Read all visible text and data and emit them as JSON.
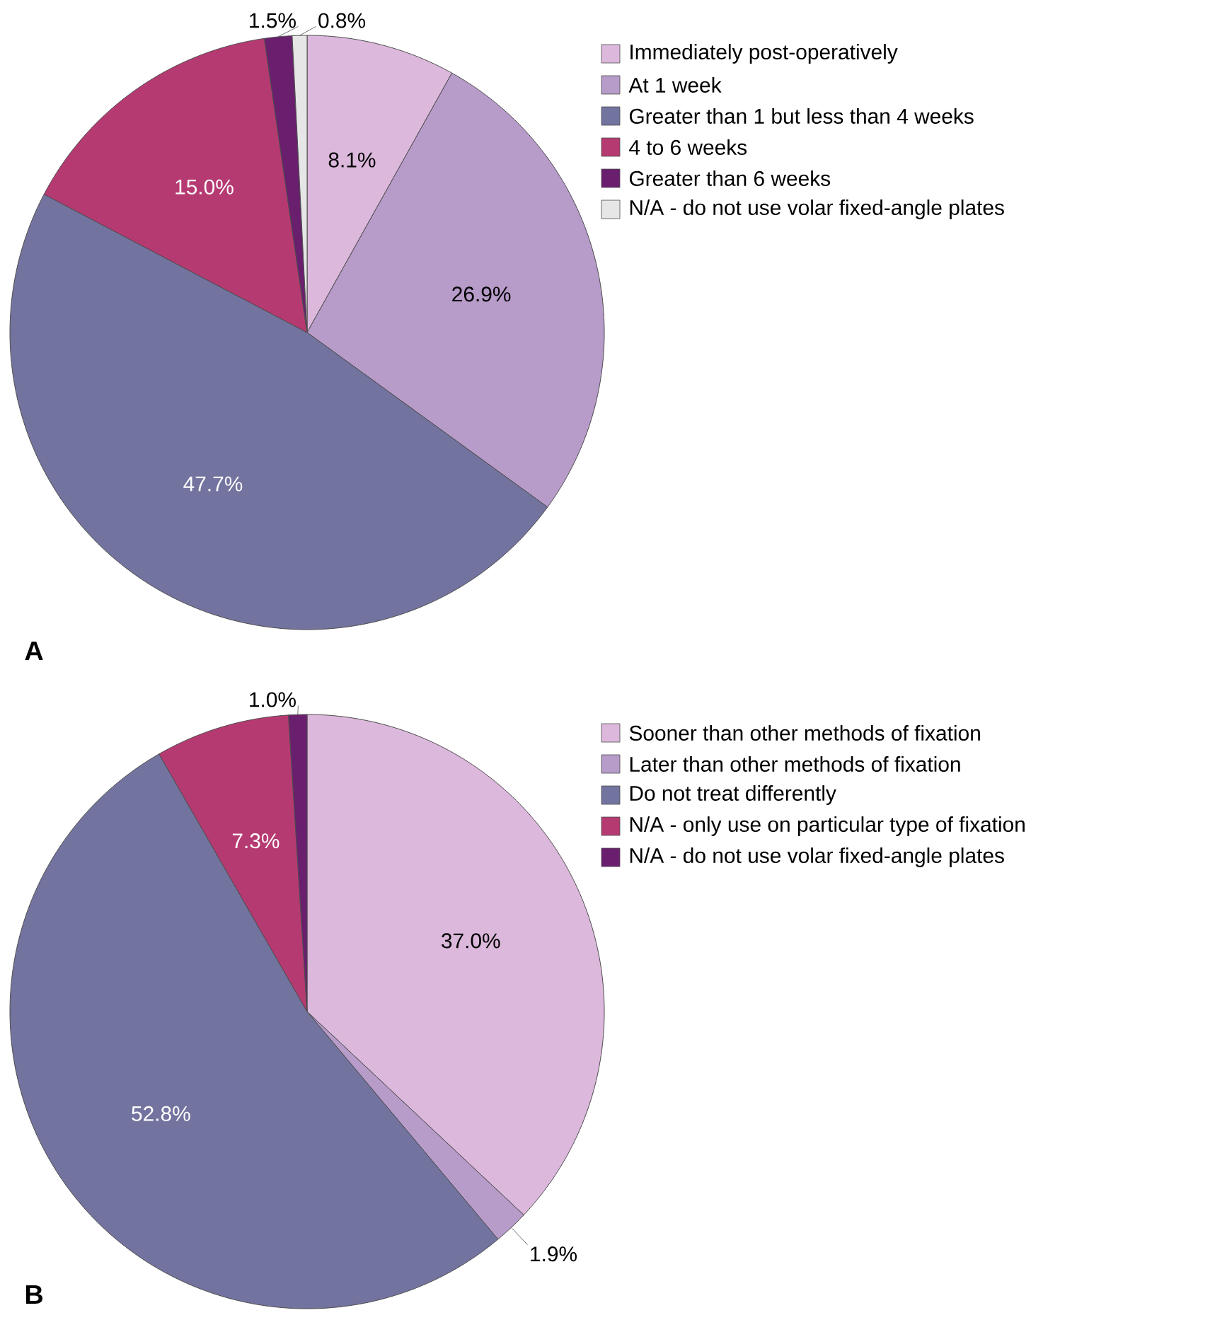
{
  "chart_data": [
    {
      "type": "pie",
      "categories": [
        "Immediately post-operatively",
        "At 1 week",
        "Greater than 1 but less than 4 weeks",
        "4 to 6 weeks",
        "Greater than 6 weeks",
        "N/A - do not use volar fixed-angle plates"
      ],
      "values": [
        8.1,
        26.9,
        47.7,
        15.0,
        1.5,
        0.8
      ],
      "value_labels": [
        "8.1%",
        "26.9%",
        "47.7%",
        "15.0%",
        "1.5%",
        "0.8%"
      ],
      "colors": [
        "#dcb8dc",
        "#b79bc9",
        "#73739f",
        "#b63a72",
        "#6a1f6e",
        "#e6e6e6"
      ],
      "legend": "right",
      "annotations": [
        "A"
      ]
    },
    {
      "type": "pie",
      "categories": [
        "Sooner than other methods of fixation",
        "Later than other methods of fixation",
        "Do not treat differently",
        "N/A - only use on particular type of fixation",
        "N/A - do not use volar fixed-angle plates"
      ],
      "values": [
        37.0,
        1.9,
        52.8,
        7.3,
        1.0
      ],
      "value_labels": [
        "37.0%",
        "1.9%",
        "52.8%",
        "7.3%",
        "1.0%"
      ],
      "colors": [
        "#dcb8dc",
        "#b79bc9",
        "#73739f",
        "#b63a72",
        "#6a1f6e"
      ],
      "legend": "right",
      "annotations": [
        "B"
      ]
    }
  ]
}
